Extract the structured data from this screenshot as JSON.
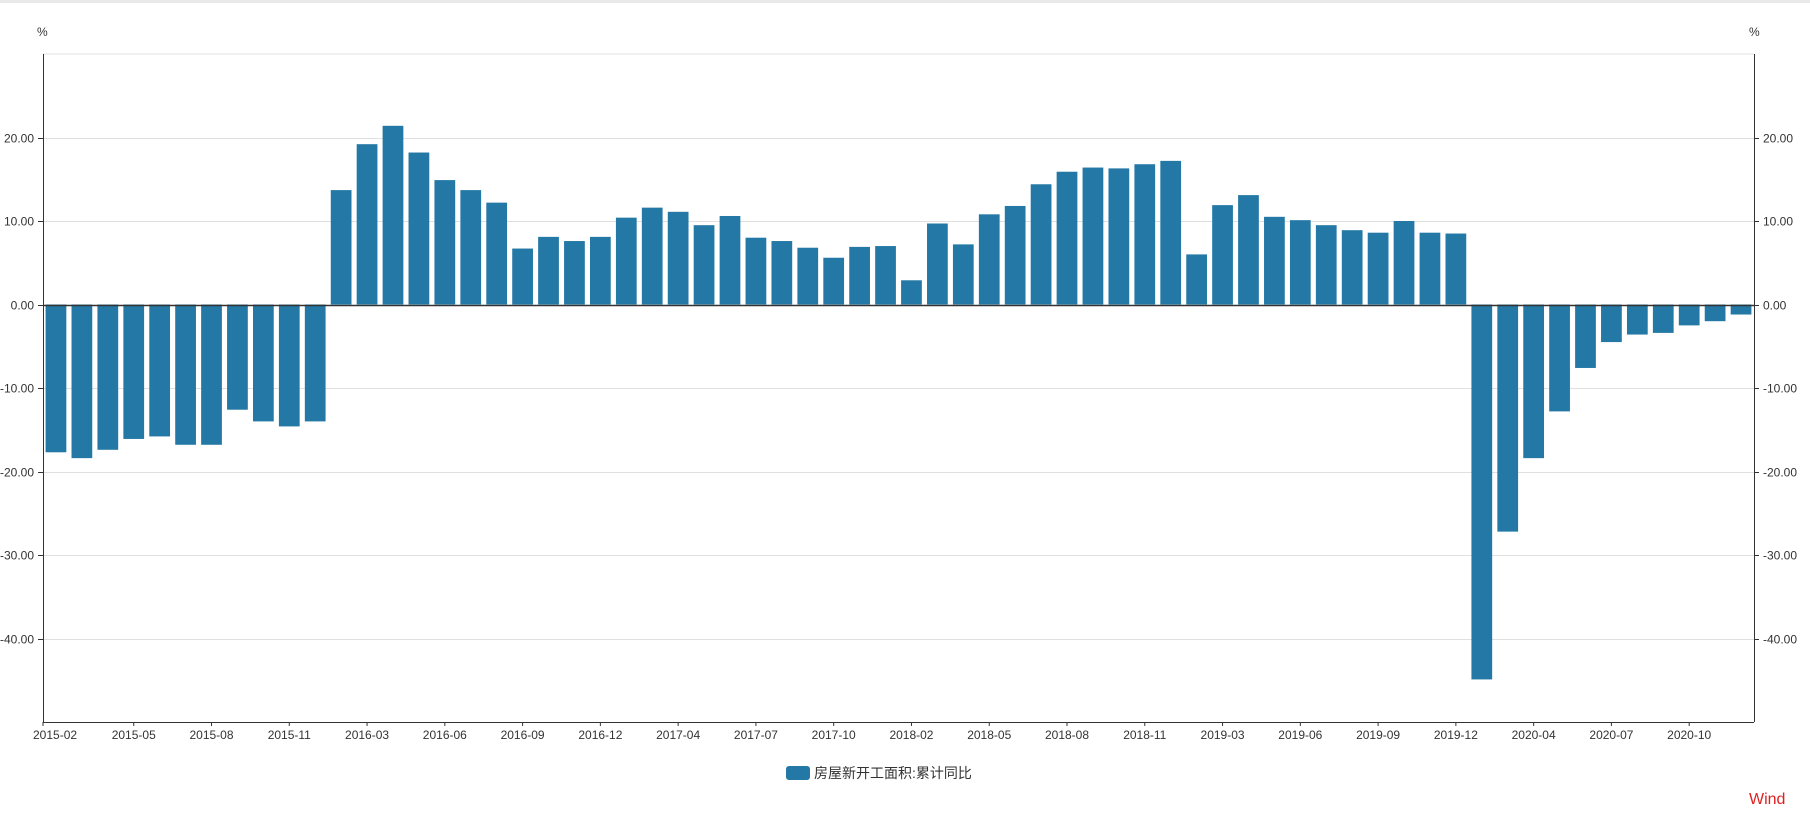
{
  "colors": {
    "bar": "#2378a5",
    "grid": "#e0e0e0",
    "axis": "#333333",
    "watermark": "#e02020"
  },
  "brand": "Wind",
  "chart_data": {
    "type": "bar",
    "y_unit_left": "%",
    "y_unit_right": "%",
    "legend": "房屋新开工面积:累计同比",
    "ylim": [
      -50,
      30
    ],
    "yticks": [
      -40,
      -30,
      -20,
      -10,
      0,
      10,
      20
    ],
    "ytick_labels": [
      "-40.00",
      "-30.00",
      "-20.00",
      "-10.00",
      "0.00",
      "10.00",
      "20.00"
    ],
    "categories": [
      "2015-02",
      "2015-03",
      "2015-04",
      "2015-05",
      "2015-06",
      "2015-07",
      "2015-08",
      "2015-09",
      "2015-10",
      "2015-11",
      "2015-12",
      "2016-02",
      "2016-03",
      "2016-04",
      "2016-05",
      "2016-06",
      "2016-07",
      "2016-08",
      "2016-09",
      "2016-10",
      "2016-11",
      "2016-12",
      "2017-02",
      "2017-03",
      "2017-04",
      "2017-05",
      "2017-06",
      "2017-07",
      "2017-08",
      "2017-09",
      "2017-10",
      "2017-11",
      "2017-12",
      "2018-02",
      "2018-03",
      "2018-04",
      "2018-05",
      "2018-06",
      "2018-07",
      "2018-08",
      "2018-09",
      "2018-10",
      "2018-11",
      "2018-12",
      "2019-02",
      "2019-03",
      "2019-04",
      "2019-05",
      "2019-06",
      "2019-07",
      "2019-08",
      "2019-09",
      "2019-10",
      "2019-11",
      "2019-12",
      "2020-02",
      "2020-03",
      "2020-04",
      "2020-05",
      "2020-06",
      "2020-07",
      "2020-08",
      "2020-09",
      "2020-10",
      "2020-11",
      "2020-12"
    ],
    "xtick_labels": [
      "2015-02",
      "2015-05",
      "2015-08",
      "2015-11",
      "2016-03",
      "2016-06",
      "2016-09",
      "2016-12",
      "2017-04",
      "2017-07",
      "2017-10",
      "2018-02",
      "2018-05",
      "2018-08",
      "2018-11",
      "2019-03",
      "2019-06",
      "2019-09",
      "2019-12",
      "2020-04",
      "2020-07",
      "2020-10"
    ],
    "values": [
      -17.7,
      -18.4,
      -17.4,
      -16.1,
      -15.8,
      -16.8,
      -16.8,
      -12.6,
      -14.0,
      -14.6,
      -14.0,
      13.7,
      19.2,
      21.4,
      18.2,
      14.9,
      13.7,
      12.2,
      6.7,
      8.1,
      7.6,
      8.1,
      10.4,
      11.6,
      11.1,
      9.5,
      10.6,
      8.0,
      7.6,
      6.8,
      5.6,
      6.9,
      7.0,
      2.9,
      9.7,
      7.2,
      10.8,
      11.8,
      14.4,
      15.9,
      16.4,
      16.3,
      16.8,
      17.2,
      6.0,
      11.9,
      13.1,
      10.5,
      10.1,
      9.5,
      8.9,
      8.6,
      10.0,
      8.6,
      8.5,
      -44.9,
      -27.2,
      -18.4,
      -12.8,
      -7.6,
      -4.5,
      -3.6,
      -3.4,
      -2.5,
      -2.0,
      -1.2
    ]
  }
}
